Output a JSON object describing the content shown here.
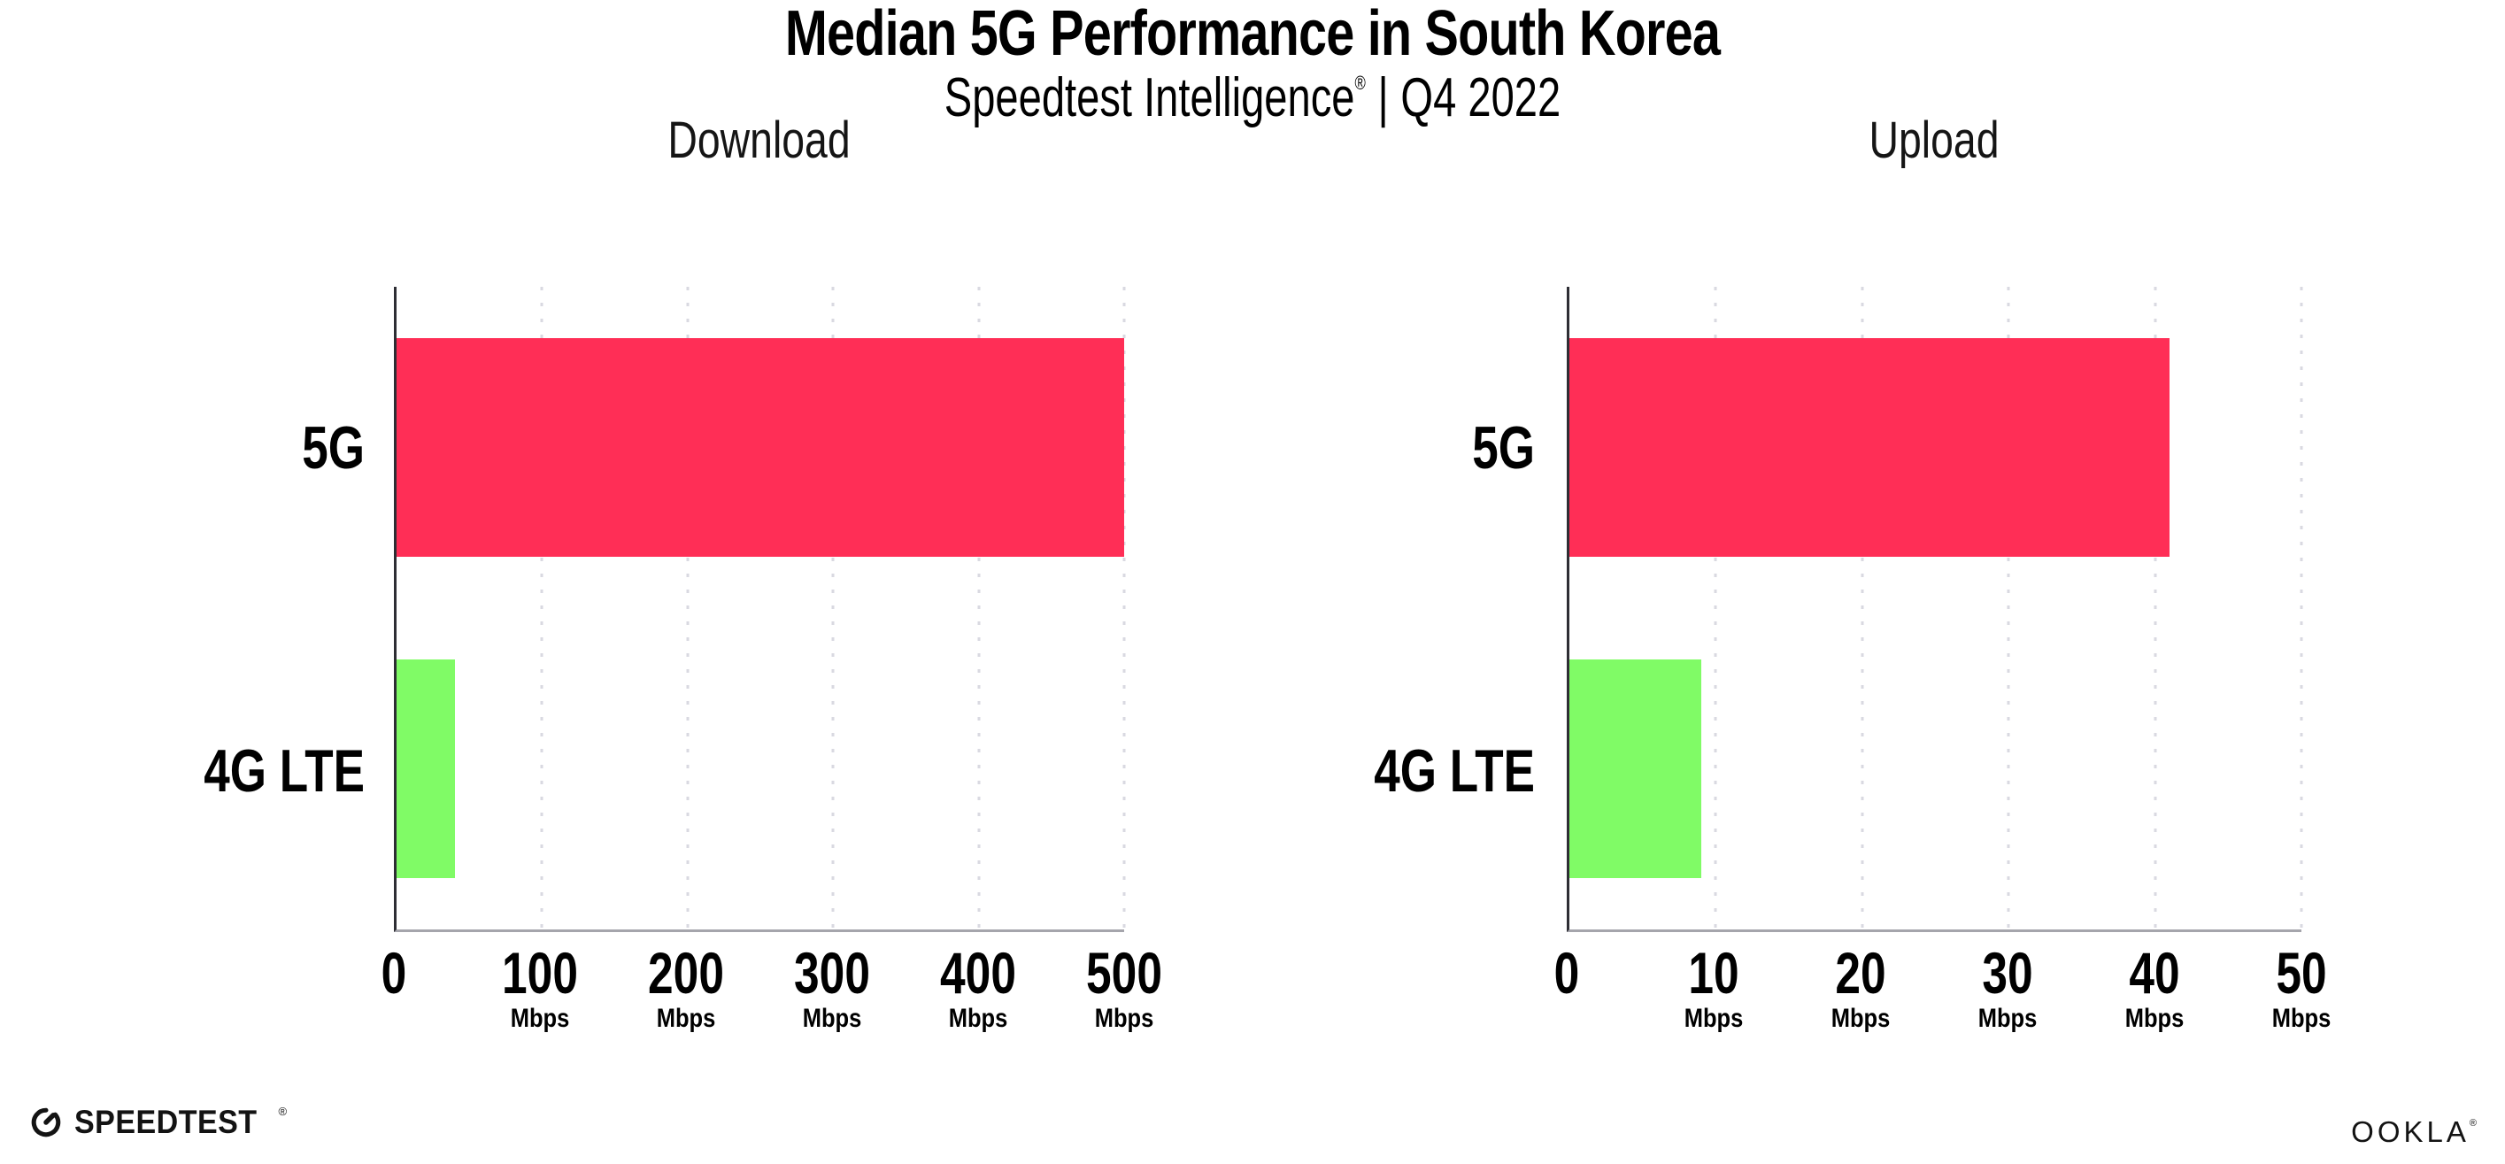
{
  "header": {
    "title": "Median 5G Performance in South Korea",
    "subtitle_brand": "Speedtest Intelligence",
    "subtitle_reg": "®",
    "subtitle_separator": "|",
    "subtitle_period": "Q4 2022"
  },
  "chart_data": [
    {
      "type": "bar",
      "orientation": "horizontal",
      "title": "Download",
      "categories": [
        "5G",
        "4G LTE"
      ],
      "values": [
        500,
        40
      ],
      "unit": "Mbps",
      "xlim": [
        0,
        500
      ],
      "xticks": [
        0,
        100,
        200,
        300,
        400,
        500
      ],
      "bar_colors": [
        "#FF2E56",
        "#80FB66"
      ],
      "grid": "vertical-dotted",
      "legend": "none"
    },
    {
      "type": "bar",
      "orientation": "horizontal",
      "title": "Upload",
      "categories": [
        "5G",
        "4G LTE"
      ],
      "values": [
        41,
        9
      ],
      "unit": "Mbps",
      "xlim": [
        0,
        50
      ],
      "xticks": [
        0,
        10,
        20,
        30,
        40,
        50
      ],
      "bar_colors": [
        "#FF2E56",
        "#80FB66"
      ],
      "grid": "vertical-dotted",
      "legend": "none"
    }
  ],
  "footer": {
    "speedtest_text": "SPEEDTEST",
    "speedtest_mark": "®",
    "ookla_text": "OOKLA",
    "ookla_mark": "®"
  },
  "colors": {
    "bar_5g": "#FF2E56",
    "bar_4g_lte": "#80FB66",
    "gridline": "#D9D9E1",
    "axis_left_spine": "#2E2E34",
    "axis_bottom_spine": "#A5A5AC",
    "text": "#000000"
  }
}
